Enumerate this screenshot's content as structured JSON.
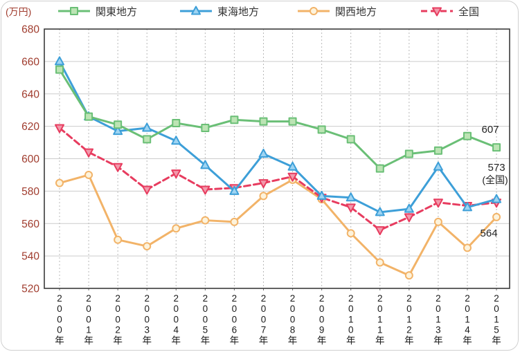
{
  "chart_data": {
    "type": "line",
    "title": "",
    "unit_label": "(万円)",
    "xlabel": "",
    "ylabel": "",
    "ylim": [
      520,
      680
    ],
    "yticks": [
      680,
      660,
      640,
      620,
      600,
      580,
      560,
      540,
      520
    ],
    "grid": true,
    "legend_position": "top",
    "y_axis_color": "#a03c2e",
    "categories": [
      "2000年",
      "2001年",
      "2002年",
      "2003年",
      "2004年",
      "2005年",
      "2006年",
      "2007年",
      "2008年",
      "2009年",
      "2010年",
      "2011年",
      "2012年",
      "2013年",
      "2014年",
      "2015年"
    ],
    "series": [
      {
        "name": "関東地方",
        "marker": "square",
        "dash": false,
        "color": "#6abf76",
        "fill": "#bce4b4",
        "values": [
          655,
          626,
          621,
          612,
          622,
          619,
          624,
          623,
          623,
          618,
          612,
          594,
          603,
          605,
          614,
          607
        ]
      },
      {
        "name": "東海地方",
        "marker": "triangle-up",
        "dash": false,
        "color": "#3d9fd8",
        "fill": "#9ed4f2",
        "values": [
          660,
          626,
          617,
          619,
          611,
          596,
          580,
          603,
          595,
          577,
          576,
          567,
          569,
          595,
          570,
          575
        ]
      },
      {
        "name": "関西地方",
        "marker": "circle",
        "dash": false,
        "color": "#f2b368",
        "fill": "#fdf3dc",
        "values": [
          585,
          590,
          550,
          546,
          557,
          562,
          561,
          577,
          587,
          575,
          554,
          536,
          528,
          561,
          545,
          564
        ]
      },
      {
        "name": "全国",
        "marker": "triangle-down",
        "dash": true,
        "color": "#e73c5f",
        "fill": "#f299ab",
        "values": [
          619,
          604,
          595,
          581,
          591,
          581,
          582,
          585,
          589,
          576,
          570,
          556,
          564,
          573,
          571,
          573
        ]
      }
    ],
    "end_labels": [
      {
        "text": "607",
        "series": 0
      },
      {
        "text": "573",
        "series": 3
      },
      {
        "text": "(全国)",
        "series": 3
      },
      {
        "text": "564",
        "series": 2
      }
    ]
  }
}
